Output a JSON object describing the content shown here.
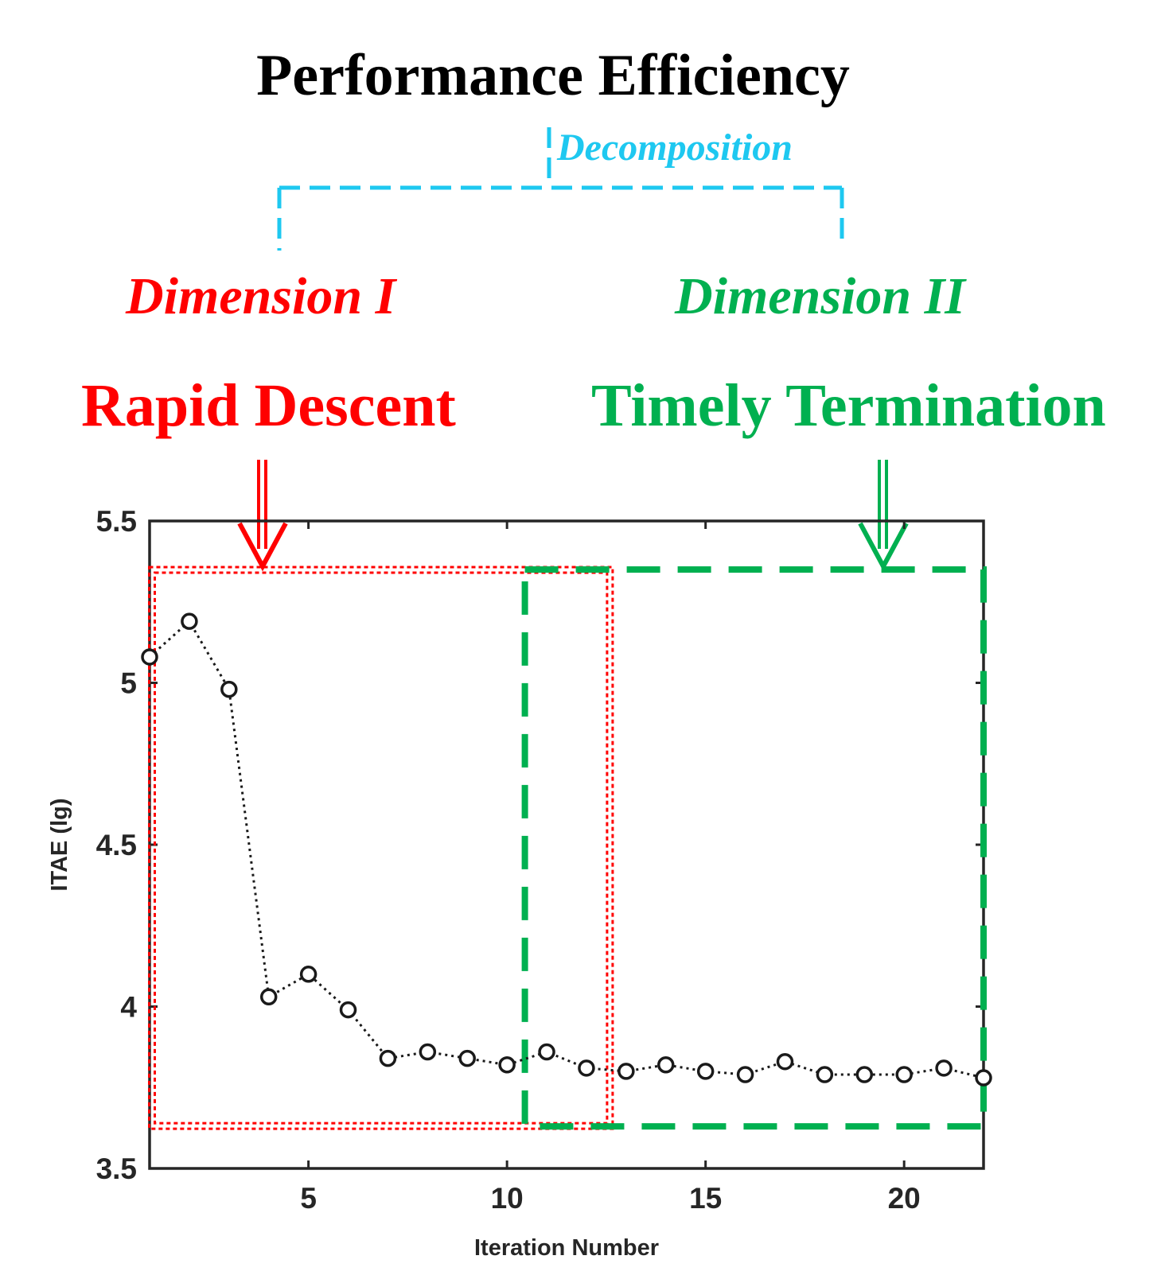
{
  "title": "Performance Efficiency",
  "decomposition_label": "Decomposition",
  "dimension_1": {
    "label": "Dimension I",
    "name": "Rapid Descent"
  },
  "dimension_2": {
    "label": "Dimension II",
    "name": "Timely Termination"
  },
  "colors": {
    "dimension_1": "#ff0000",
    "dimension_2": "#00b050",
    "decomposition": "#1ec8f0",
    "series": "#1a1a1a"
  },
  "chart_data": {
    "type": "line",
    "title": "",
    "xlabel": "Iteration Number",
    "ylabel": "ITAE (lg)",
    "xlim": [
      1,
      22
    ],
    "ylim": [
      3.5,
      5.5
    ],
    "xticks": [
      5,
      10,
      15,
      20
    ],
    "yticks": [
      3.5,
      4,
      4.5,
      5,
      5.5
    ],
    "ytick_labels": [
      "3.5",
      "4",
      "4.5",
      "5",
      "5.5"
    ],
    "x": [
      1,
      2,
      3,
      4,
      5,
      6,
      7,
      8,
      9,
      10,
      11,
      12,
      13,
      14,
      15,
      16,
      17,
      18,
      19,
      20,
      21,
      22
    ],
    "values": [
      5.08,
      5.19,
      4.98,
      4.03,
      4.1,
      3.99,
      3.84,
      3.86,
      3.84,
      3.82,
      3.86,
      3.81,
      3.8,
      3.82,
      3.8,
      3.79,
      3.83,
      3.79,
      3.79,
      3.79,
      3.81,
      3.78
    ],
    "regions": [
      {
        "name": "Rapid Descent",
        "x_range": [
          1.05,
          12.6
        ],
        "y_range": [
          3.63,
          5.35
        ]
      },
      {
        "name": "Timely Termination",
        "x_range": [
          10.45,
          22
        ],
        "y_range": [
          3.63,
          5.35
        ]
      }
    ]
  }
}
